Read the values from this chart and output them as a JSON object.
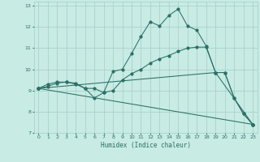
{
  "xlabel": "Humidex (Indice chaleur)",
  "background_color": "#c8ebe3",
  "grid_color": "#a0cfc7",
  "line_color": "#2a7068",
  "xlim": [
    -0.5,
    23.5
  ],
  "ylim": [
    7,
    13.2
  ],
  "xticks": [
    0,
    1,
    2,
    3,
    4,
    5,
    6,
    7,
    8,
    9,
    10,
    11,
    12,
    13,
    14,
    15,
    16,
    17,
    18,
    19,
    20,
    21,
    22,
    23
  ],
  "yticks": [
    7,
    8,
    9,
    10,
    11,
    12,
    13
  ],
  "lines": [
    {
      "x": [
        0,
        1,
        2,
        3,
        4,
        5,
        6,
        7,
        8,
        9,
        10,
        11,
        12,
        13,
        14,
        15,
        16,
        17,
        18,
        19,
        20,
        21,
        22,
        23
      ],
      "y": [
        9.1,
        9.3,
        9.4,
        9.4,
        9.35,
        9.1,
        8.65,
        8.9,
        9.9,
        10.0,
        10.75,
        11.55,
        12.25,
        12.05,
        12.55,
        12.85,
        12.05,
        11.85,
        11.1,
        9.85,
        9.85,
        8.65,
        7.9,
        7.4
      ]
    },
    {
      "x": [
        0,
        1,
        2,
        3,
        4,
        5,
        6,
        7,
        8,
        9,
        10,
        11,
        12,
        13,
        14,
        15,
        16,
        17,
        18,
        19,
        20,
        21,
        22,
        23
      ],
      "y": [
        9.1,
        9.2,
        9.35,
        9.4,
        9.3,
        9.1,
        9.1,
        8.9,
        9.0,
        9.5,
        9.8,
        10.0,
        10.3,
        10.5,
        10.65,
        10.85,
        11.0,
        11.05,
        11.05,
        9.85,
        9.85,
        8.65,
        7.9,
        7.4
      ]
    },
    {
      "x": [
        0,
        23
      ],
      "y": [
        9.1,
        7.4
      ]
    },
    {
      "x": [
        0,
        19,
        23
      ],
      "y": [
        9.1,
        9.85,
        7.4
      ]
    }
  ]
}
